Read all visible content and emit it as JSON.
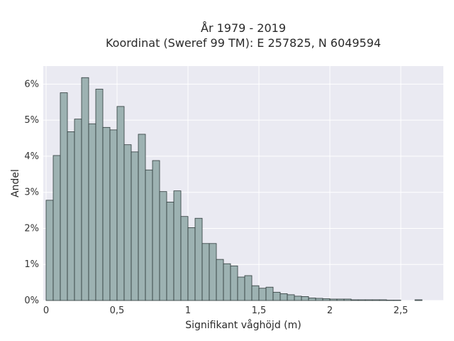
{
  "chart_data": {
    "type": "bar",
    "title_lines": [
      "År 1979 - 2019",
      "Koordinat (Sweref 99 TM): E 257825, N 6049594"
    ],
    "xlabel": "Signifikant våghöjd (m)",
    "ylabel": "Andel",
    "xlim": [
      -0.02,
      2.8
    ],
    "ylim": [
      0,
      6.5
    ],
    "x_ticks": [
      0,
      0.5,
      1,
      1.5,
      2,
      2.5
    ],
    "x_tick_labels": [
      "0",
      "0,5",
      "1",
      "1,5",
      "2",
      "2,5"
    ],
    "y_ticks": [
      0,
      1,
      2,
      3,
      4,
      5,
      6
    ],
    "y_tick_labels": [
      "0%",
      "1%",
      "2%",
      "3%",
      "4%",
      "5%",
      "6%"
    ],
    "bin_width": 0.05,
    "bin_starts": [
      0.0,
      0.05,
      0.1,
      0.15,
      0.2,
      0.25,
      0.3,
      0.35,
      0.4,
      0.45,
      0.5,
      0.55,
      0.6,
      0.65,
      0.7,
      0.75,
      0.8,
      0.85,
      0.9,
      0.95,
      1.0,
      1.05,
      1.1,
      1.15,
      1.2,
      1.25,
      1.3,
      1.35,
      1.4,
      1.45,
      1.5,
      1.55,
      1.6,
      1.65,
      1.7,
      1.75,
      1.8,
      1.85,
      1.9,
      1.95,
      2.0,
      2.05,
      2.1,
      2.15,
      2.2,
      2.25,
      2.3,
      2.35,
      2.4,
      2.45,
      2.5,
      2.55,
      2.6,
      2.65
    ],
    "values": [
      2.78,
      4.02,
      5.76,
      4.68,
      5.03,
      6.18,
      4.9,
      5.86,
      4.8,
      4.73,
      5.38,
      4.32,
      4.12,
      4.61,
      3.62,
      3.88,
      3.02,
      2.73,
      3.04,
      2.33,
      2.02,
      2.28,
      1.58,
      1.58,
      1.14,
      1.02,
      0.96,
      0.65,
      0.69,
      0.41,
      0.34,
      0.37,
      0.23,
      0.19,
      0.16,
      0.12,
      0.11,
      0.07,
      0.06,
      0.05,
      0.04,
      0.04,
      0.04,
      0.02,
      0.02,
      0.02,
      0.02,
      0.02,
      0.01,
      0.01,
      0.0,
      0.0,
      0.02,
      0.0
    ],
    "colors": {
      "bar_fill": "#9db2b2",
      "bar_edge": "#2f3b3b",
      "plot_bg": "#eaeaf2",
      "grid": "#ffffff"
    },
    "grid": true
  }
}
